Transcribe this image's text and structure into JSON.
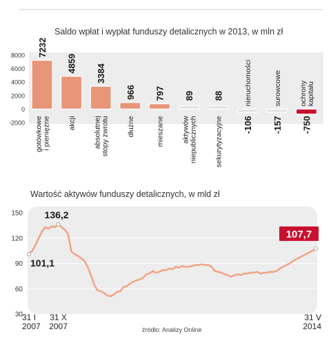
{
  "colors": {
    "accent": "#e8957a",
    "negative_highlight": "#c8102e",
    "neutral_bar": "#e4e4e4",
    "panel_bg": "#ededed",
    "line": "#f0a586",
    "label_box": "#c8102e"
  },
  "source": "źródło: Analizy Online",
  "chart_data": [
    {
      "type": "bar",
      "title": "Saldo wpłat i wypłat funduszy detalicznych w 2013, w mln zł",
      "ylim": [
        -2000,
        8000
      ],
      "y_ticks": [
        "8000",
        "6000",
        "4000",
        "2000",
        "0",
        "-2000"
      ],
      "categories": [
        "gotówkowe i pieniężne",
        "akcji",
        "absolutnej stopy zwrotu",
        "dłużne",
        "mieszane",
        "aktywów niepublicznych",
        "sekurytyzacyjne",
        "nieruchomości",
        "surowcowe",
        "ochrony kapitału"
      ],
      "values": [
        7232,
        4859,
        3384,
        966,
        797,
        89,
        88,
        -106,
        -157,
        -750
      ],
      "value_labels": [
        "7232",
        "4859",
        "3384",
        "966",
        "797",
        "89",
        "88",
        "-106",
        "-157",
        "-750"
      ],
      "category_lines": [
        [
          "gotówkowe",
          "i pieniężne"
        ],
        [
          "akcji"
        ],
        [
          "absolutnej",
          "stopy zwrotu"
        ],
        [
          "dłużne"
        ],
        [
          "mieszane"
        ],
        [
          "aktywów",
          "niepublicznych"
        ],
        [
          "sekurytyzacyjne"
        ],
        [
          "nieruchomości"
        ],
        [
          "surowcowe"
        ],
        [
          "ochrony",
          "kapitału"
        ]
      ]
    },
    {
      "type": "line",
      "title": "Wartość aktywów funduszy detalicznych, w mld zł",
      "ylim": [
        30,
        150
      ],
      "y_ticks": [
        "150",
        "120",
        "90",
        "60",
        "30"
      ],
      "x_labels": [
        {
          "lines": [
            "31 I",
            "2007"
          ],
          "t": 0
        },
        {
          "lines": [
            "31 X",
            "2007"
          ],
          "t": 9
        },
        {
          "lines": [
            "31 V",
            "2014"
          ],
          "t": 88
        }
      ],
      "x_range": [
        0,
        88
      ],
      "values": [
        101.1,
        105,
        112,
        120,
        128,
        133,
        131,
        134,
        133,
        136.2,
        133,
        130,
        125,
        104,
        101,
        99,
        96,
        93,
        86,
        76,
        65,
        58,
        57,
        55,
        52,
        51,
        53,
        56,
        57,
        62,
        63,
        66,
        68,
        70,
        71,
        73,
        77,
        78,
        81,
        79,
        80,
        82,
        82,
        84,
        83,
        86,
        85,
        87,
        86,
        86,
        87,
        88,
        88,
        89,
        88,
        88,
        86,
        81,
        80,
        79,
        77,
        76,
        74,
        76,
        77,
        76,
        78,
        78,
        79,
        79,
        80,
        78,
        79,
        79,
        80,
        80,
        81,
        84,
        86,
        88,
        90,
        93,
        95,
        97,
        99,
        101,
        103,
        105,
        107.7
      ],
      "annotations": [
        {
          "t": 0,
          "value": 101.1,
          "label": "101,1"
        },
        {
          "t": 9,
          "value": 136.2,
          "label": "136,2"
        },
        {
          "t": 88,
          "value": 107.7,
          "label": "107,7"
        }
      ]
    }
  ]
}
